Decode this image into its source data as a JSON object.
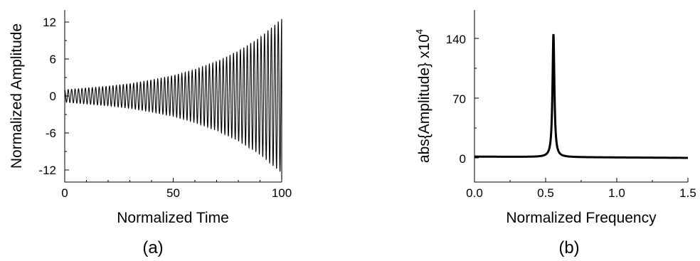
{
  "chart_data": [
    {
      "type": "line",
      "caption": "(a)",
      "xlabel": "Normalized Time",
      "ylabel": "Normalized Amplitude",
      "xlim": [
        0,
        100
      ],
      "ylim": [
        -14,
        14
      ],
      "xticks": [
        0,
        50,
        100
      ],
      "xtick_labels": [
        "0",
        "50",
        "100"
      ],
      "yticks": [
        12,
        6,
        0,
        -6,
        -12
      ],
      "ytick_labels": [
        "12",
        "6",
        "0",
        "-6",
        "-12"
      ],
      "grid": false,
      "series": [
        {
          "cycles": 63,
          "x": [
            0,
            10,
            20,
            30,
            40,
            50,
            60,
            70,
            80,
            90,
            100
          ],
          "envelope": [
            1.0,
            1.3,
            1.6,
            2.0,
            2.6,
            3.3,
            4.3,
            5.6,
            7.3,
            9.5,
            12.5
          ],
          "final_value": -13.5
        }
      ],
      "color": "#000000"
    },
    {
      "type": "line",
      "caption": "(b)",
      "xlabel": "Normalized Frequency",
      "ylabel": "abs{Amplitude} x10",
      "ylabel_exponent": "4",
      "xlim": [
        0,
        1.5
      ],
      "ylim": [
        -15,
        170
      ],
      "xticks": [
        0,
        0.5,
        1.0,
        1.5
      ],
      "xtick_labels": [
        "0.0",
        "0.5",
        "1.0",
        "1.5"
      ],
      "yticks": [
        0,
        70,
        140
      ],
      "ytick_labels": [
        "0",
        "70",
        "140"
      ],
      "grid": false,
      "series": [
        {
          "peak_x": 0.555,
          "peak_y": 145,
          "baseline_left": 1.5,
          "baseline_right": 0
        }
      ],
      "color": "#000000"
    }
  ]
}
